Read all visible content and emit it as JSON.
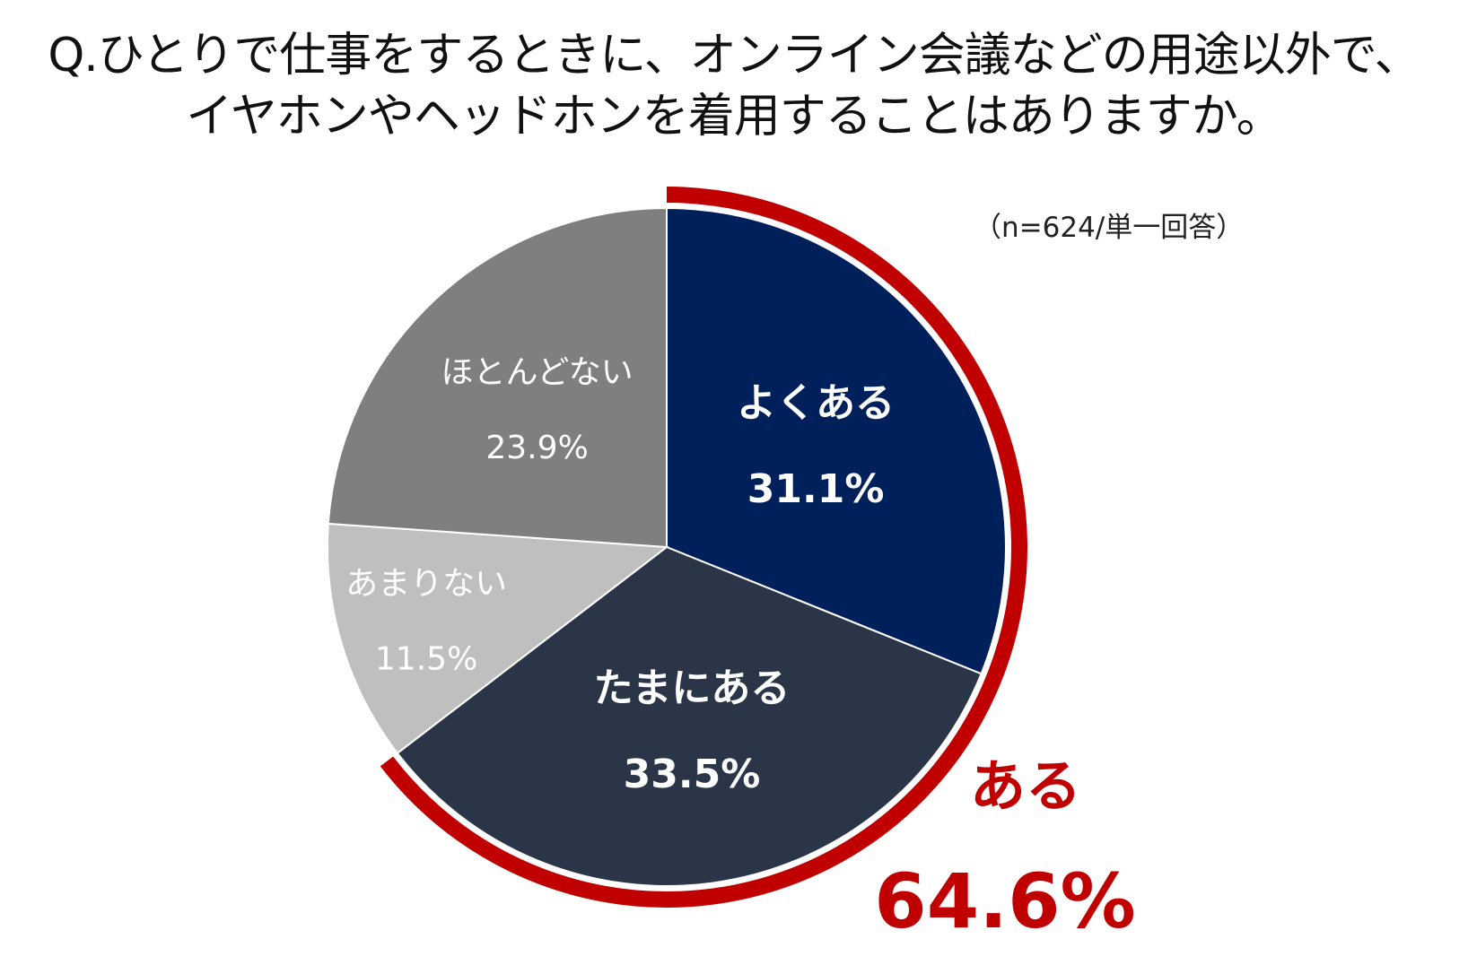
{
  "title": {
    "line1": "Q.ひとりで仕事をするときに、オンライン会議などの用途以外で、",
    "line2": "イヤホンやヘッドホンを着用することはありますか。"
  },
  "note": "（n=624/単一回答）",
  "chart_data": {
    "type": "pie",
    "title": "Q.ひとりで仕事をするときに、オンライン会議などの用途以外で、イヤホンやヘッドホンを着用することはありますか。",
    "slices": [
      {
        "label": "よくある",
        "value": 31.1,
        "value_label": "31.1%",
        "color": "#00205b"
      },
      {
        "label": "たまにある",
        "value": 33.5,
        "value_label": "33.5%",
        "color": "#2a3547"
      },
      {
        "label": "あまりない",
        "value": 11.5,
        "value_label": "11.5%",
        "color": "#bfbfbf"
      },
      {
        "label": "ほとんどない",
        "value": 23.9,
        "value_label": "23.9%",
        "color": "#7f7f7f"
      }
    ],
    "aggregate": {
      "label": "ある",
      "value": 64.6,
      "value_label": "64.6%",
      "color": "#c00000",
      "covers": [
        "よくある",
        "たまにある"
      ]
    }
  }
}
